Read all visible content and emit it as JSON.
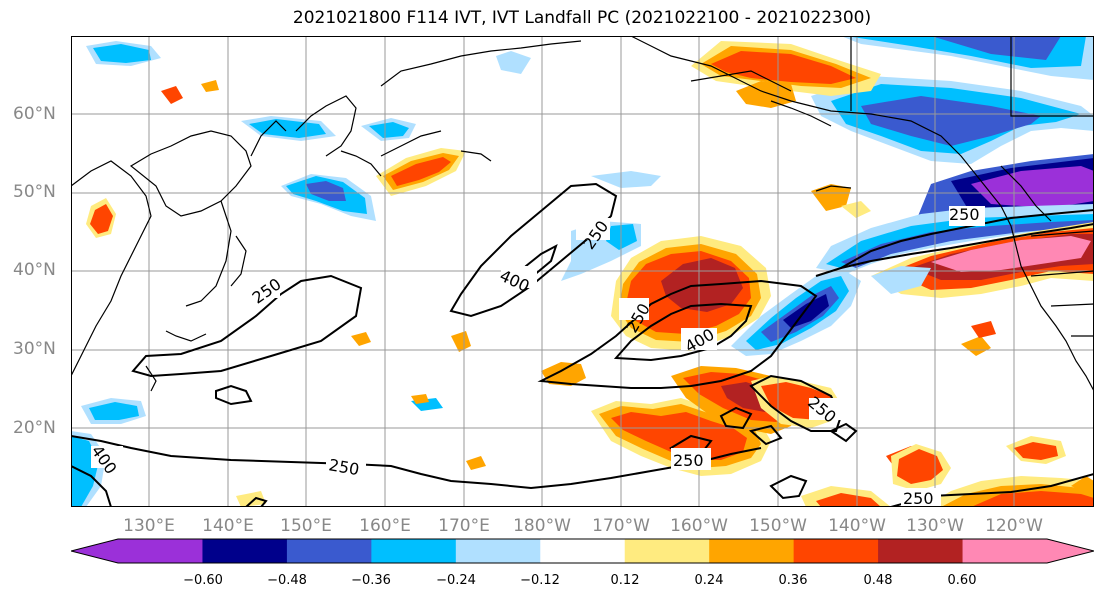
{
  "title": "2021021800 F114 IVT, IVT Landfall PC (2021022100 - 2021022300)",
  "lat_labels": [
    "60°N",
    "50°N",
    "40°N",
    "30°N",
    "20°N"
  ],
  "lon_labels": [
    "130°E",
    "140°E",
    "150°E",
    "160°E",
    "170°E",
    "180°W",
    "170°W",
    "160°W",
    "150°W",
    "140°W",
    "130°W",
    "120°W"
  ],
  "contour_labels": [
    "250",
    "250",
    "250",
    "400",
    "250",
    "400",
    "250",
    "250",
    "400",
    "250",
    "250"
  ],
  "colorbar": {
    "ticks": [
      "−0.60",
      "−0.48",
      "−0.36",
      "−0.24",
      "−0.12",
      "0.12",
      "0.24",
      "0.36",
      "0.48",
      "0.60"
    ],
    "colors": [
      "#9b30d9",
      "#00008b",
      "#3a5acf",
      "#00bfff",
      "#b0e0ff",
      "#ffffff",
      "#ffeb80",
      "#ffa500",
      "#ff4500",
      "#b22222",
      "#ff88b4",
      "#ff88b4"
    ]
  },
  "colors": {
    "purple": "#9b30d9",
    "navy": "#00008b",
    "royal": "#3a5acf",
    "sky": "#00bfff",
    "pale_blue": "#b0e0ff",
    "pale_yellow": "#ffeb80",
    "orange": "#ffa500",
    "red_orange": "#ff4500",
    "dark_red": "#b22222",
    "pink": "#ff88b4"
  }
}
